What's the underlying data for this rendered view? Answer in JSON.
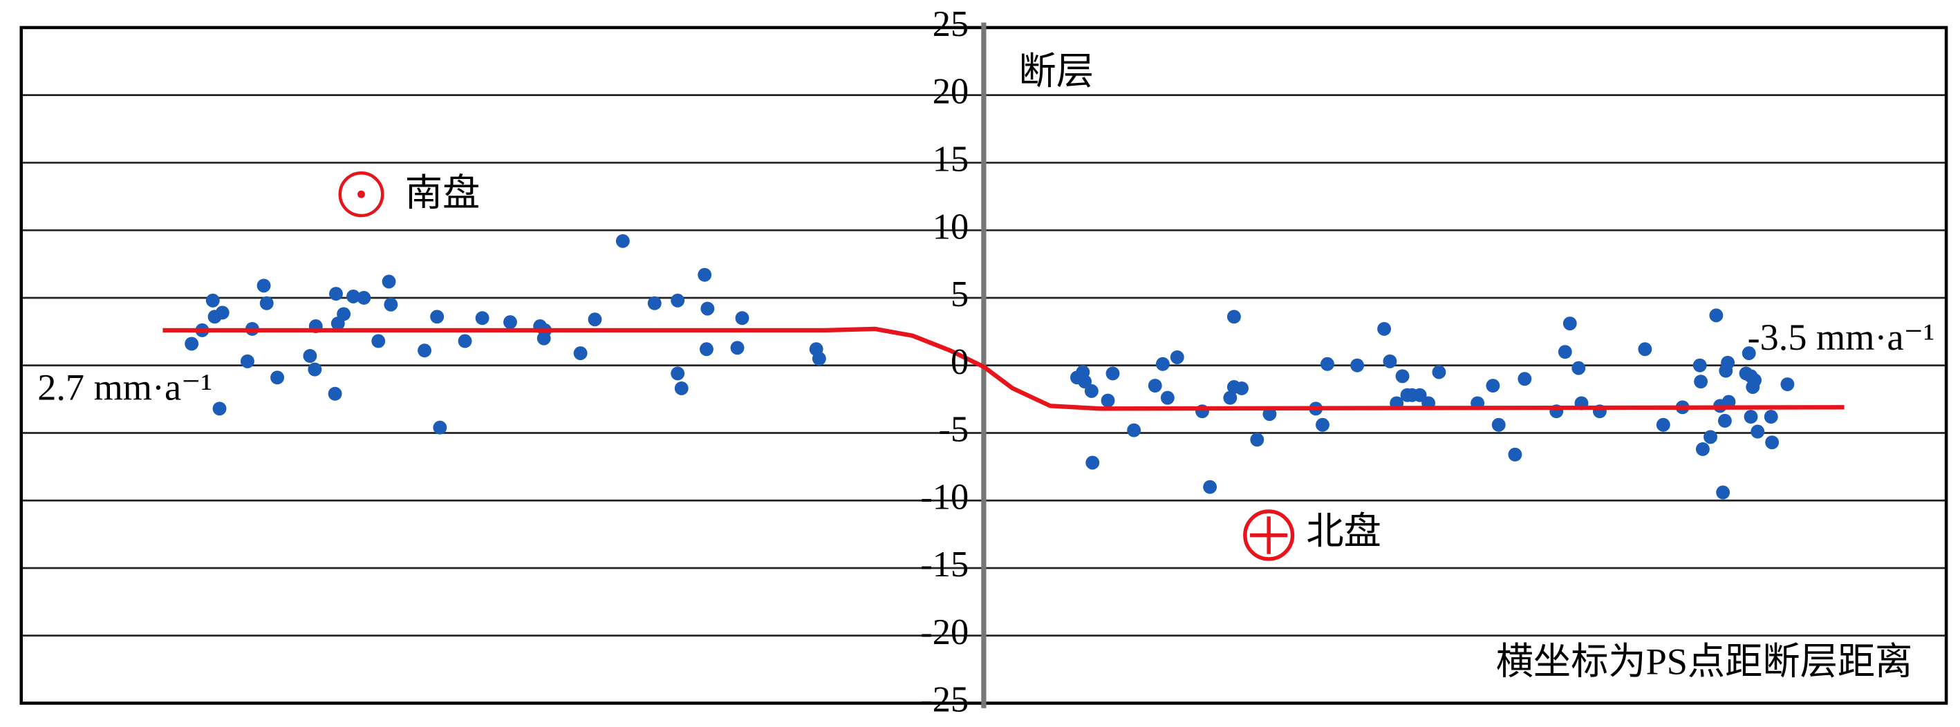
{
  "chart_data": {
    "type": "scatter",
    "xlim": [
      -100,
      100
    ],
    "ylim": [
      -25,
      25
    ],
    "yticks": [
      -25,
      -20,
      -15,
      -10,
      -5,
      0,
      5,
      10,
      15,
      20,
      25
    ],
    "grid": true,
    "annotations": [
      "断层",
      "南盘",
      "北盘",
      "2.7 mm·a⁻¹",
      "-3.5 mm·a⁻¹",
      "横坐标为PS点距断层距离"
    ],
    "series": [
      {
        "type": "scatter",
        "color": "#1a5cb8",
        "x": [
          -82.3,
          -81.2,
          -80.1,
          -79.9,
          -79.1,
          -79.4,
          -76.5,
          -76.0,
          -74.8,
          -74.5,
          -73.4,
          -70.0,
          -69.5,
          -69.4,
          -67.4,
          -67.3,
          -67.1,
          -66.5,
          -65.5,
          -64.4,
          -62.9,
          -61.8,
          -61.6,
          -58.1,
          -56.8,
          -56.5,
          -53.9,
          -52.1,
          -49.2,
          -46.1,
          -45.7,
          -45.6,
          -41.9,
          -40.4,
          -37.5,
          -34.2,
          -31.8,
          -31.8,
          -31.4,
          -29.0,
          -28.8,
          -28.7,
          -25.6,
          -25.1,
          -17.4,
          -17.1,
          9.7,
          10.3,
          10.5,
          11.2,
          11.3,
          12.9,
          13.4,
          15.6,
          17.8,
          18.6,
          19.1,
          20.1,
          22.7,
          23.5,
          26.0,
          25.6,
          26.0,
          26.8,
          28.4,
          29.7,
          34.5,
          35.2,
          35.7,
          38.8,
          41.6,
          42.2,
          42.9,
          43.5,
          44.0,
          44.5,
          45.3,
          46.2,
          47.3,
          51.3,
          52.9,
          53.5,
          55.2,
          56.2,
          59.5,
          60.4,
          60.9,
          61.8,
          62.1,
          64.0,
          68.7,
          70.6,
          72.6,
          74.4,
          74.5,
          74.7,
          75.5,
          76.1,
          76.5,
          76.8,
          77.0,
          77.1,
          77.3,
          77.4,
          79.2,
          79.5,
          79.7,
          79.7,
          79.9,
          80.1,
          80.4,
          81.8,
          81.9,
          83.5
        ],
        "y": [
          1.6,
          2.6,
          4.8,
          3.6,
          3.9,
          -3.2,
          0.3,
          2.7,
          5.9,
          4.6,
          -0.9,
          0.7,
          -0.3,
          2.9,
          -2.1,
          5.3,
          3.1,
          3.8,
          5.1,
          5.0,
          1.8,
          6.2,
          4.5,
          1.1,
          3.6,
          -4.6,
          1.8,
          3.5,
          3.2,
          2.9,
          2.0,
          2.6,
          0.9,
          3.4,
          9.2,
          4.6,
          -0.6,
          4.8,
          -1.7,
          6.7,
          1.2,
          4.2,
          1.3,
          3.5,
          1.2,
          0.5,
          -0.9,
          -0.5,
          -1.2,
          -1.9,
          -7.2,
          -2.6,
          -0.6,
          -4.8,
          -1.5,
          0.1,
          -2.4,
          0.6,
          -3.4,
          -9.0,
          3.6,
          -2.4,
          -1.6,
          -1.7,
          -5.5,
          -3.6,
          -3.2,
          -4.4,
          0.1,
          0,
          2.7,
          0.3,
          -2.8,
          -0.8,
          -2.2,
          -2.2,
          -2.2,
          -2.8,
          -0.5,
          -2.8,
          -1.5,
          -4.4,
          -6.6,
          -1.0,
          -3.4,
          1.0,
          3.1,
          -0.2,
          -2.8,
          -3.4,
          1.2,
          -4.4,
          -3.1,
          0,
          -1.2,
          -6.2,
          -5.3,
          3.7,
          -3.0,
          -9.4,
          -4.1,
          -0.4,
          0.2,
          -2.7,
          -0.6,
          0.9,
          -3.8,
          -0.8,
          -1.6,
          -1.1,
          -4.9,
          -3.8,
          -5.7,
          -1.4
        ]
      },
      {
        "type": "line",
        "color": "#e8141c",
        "x": [
          -85.3,
          -16.5,
          -11.3,
          -7.4,
          -3.5,
          0,
          3.0,
          6.9,
          12.1,
          89.4
        ],
        "y": [
          2.6,
          2.6,
          2.7,
          2.2,
          1.1,
          -0.1,
          -1.7,
          -3.0,
          -3.2,
          -3.1
        ]
      }
    ]
  }
}
